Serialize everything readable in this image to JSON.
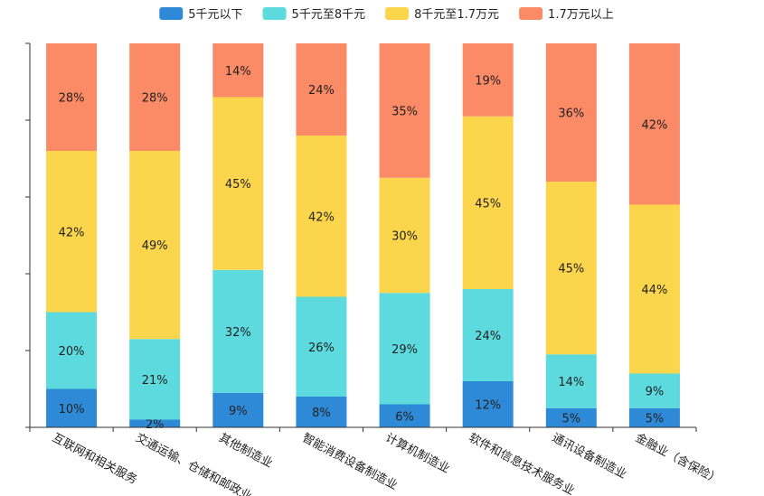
{
  "chart_data": {
    "type": "bar",
    "stacked": true,
    "normalized": true,
    "categories": [
      "互联网和相关服务",
      "交通运输、仓储和邮政业",
      "其他制造业",
      "智能消费设备制造业",
      "计算机制造业",
      "软件和信息技术服务业",
      "通讯设备制造业",
      "金融业（含保险）"
    ],
    "series": [
      {
        "name": "5千元以下",
        "color": "#2e8ad6",
        "values": [
          10,
          2,
          9,
          8,
          6,
          12,
          5,
          5
        ]
      },
      {
        "name": "5千元至8千元",
        "color": "#5cdade",
        "values": [
          20,
          21,
          32,
          26,
          29,
          24,
          14,
          9
        ]
      },
      {
        "name": "8千元至1.7万元",
        "color": "#fbd54b",
        "values": [
          42,
          49,
          45,
          42,
          30,
          45,
          45,
          44
        ]
      },
      {
        "name": "1.7万元以上",
        "color": "#fb8a67",
        "values": [
          28,
          28,
          14,
          24,
          35,
          19,
          36,
          42
        ]
      }
    ],
    "value_format": "percent",
    "legend_position": "top",
    "ylim": [
      0,
      100
    ],
    "y_tick_labels_shown": false,
    "grid": false
  }
}
